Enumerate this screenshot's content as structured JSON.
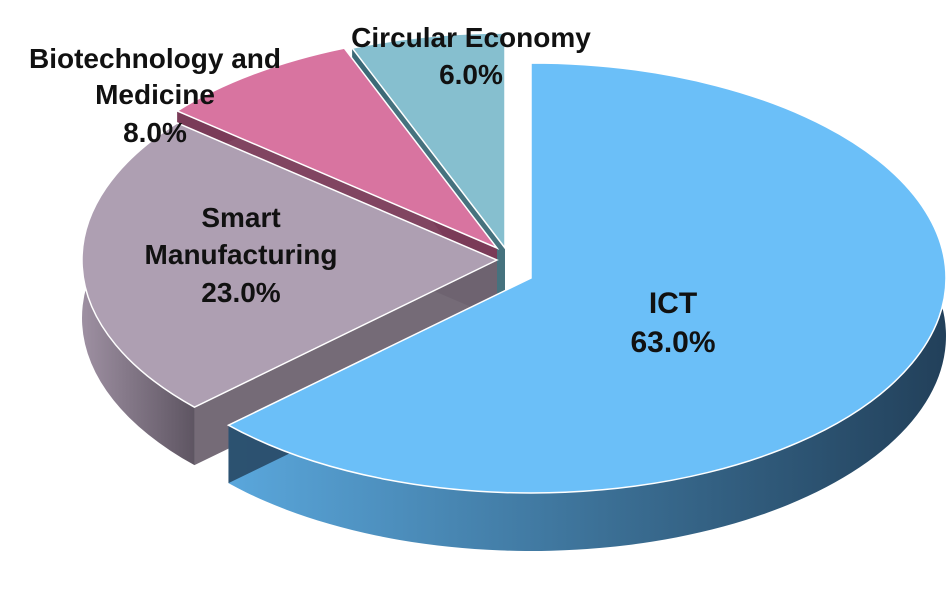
{
  "chart_data": {
    "type": "pie",
    "title": "",
    "style": "3d-exploded",
    "legend": "none",
    "labels_inside": [
      "ICT",
      "Smart Manufacturing"
    ],
    "slices": [
      {
        "label": "ICT",
        "value": 63.0,
        "pct": "63.0%",
        "color": "#6bbff8",
        "side": "#2a4d6a"
      },
      {
        "label": "Smart Manufacturing",
        "value": 23.0,
        "pct": "23.0%",
        "color": "#ae9fb2",
        "side": "#6e6370"
      },
      {
        "label": "Biotechnology and Medicine",
        "value": 8.0,
        "pct": "8.0%",
        "color": "#d874a0",
        "side": "#7a3b58"
      },
      {
        "label": "Circular Economy",
        "value": 6.0,
        "pct": "6.0%",
        "color": "#86bfcf",
        "side": "#3c6a77"
      }
    ]
  }
}
